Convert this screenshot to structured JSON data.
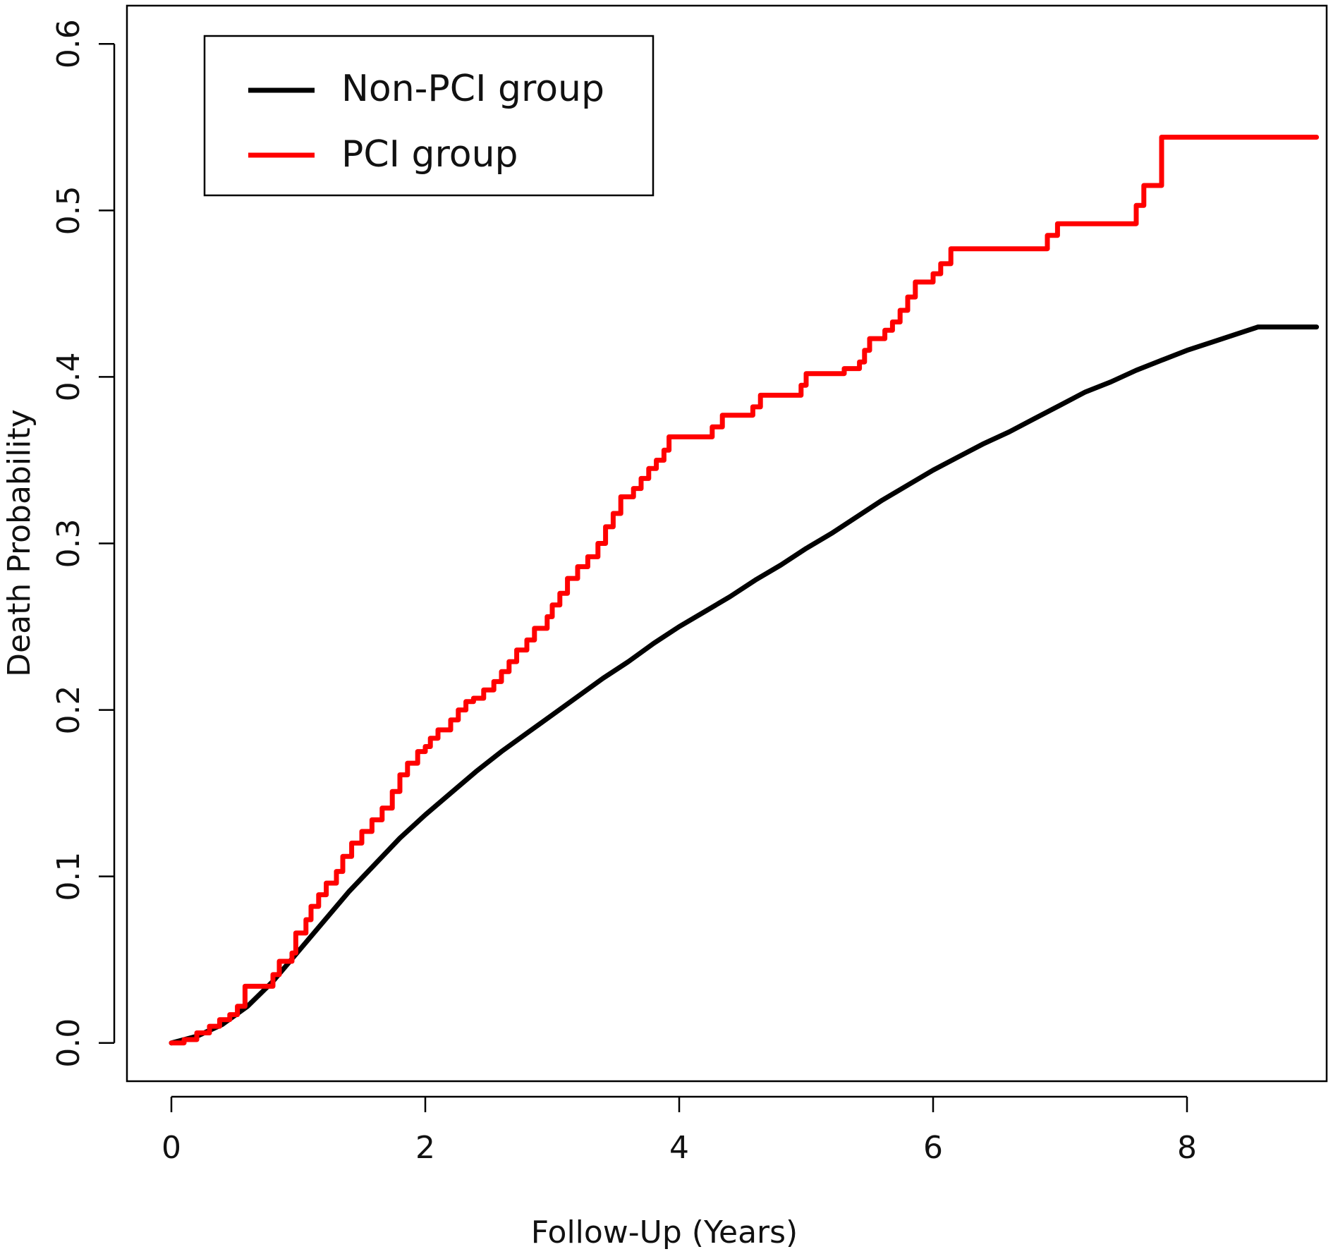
{
  "chart_data": {
    "type": "line",
    "title": "",
    "xlabel": "Follow-Up (Years)",
    "ylabel": "Death Probability",
    "xlim": [
      -0.35,
      9.1
    ],
    "ylim": [
      -0.023,
      0.623
    ],
    "x_ticks": [
      0,
      2,
      4,
      6,
      8
    ],
    "x_tick_labels": [
      "0",
      "2",
      "4",
      "6",
      "8"
    ],
    "y_ticks": [
      0.0,
      0.1,
      0.2,
      0.3,
      0.4,
      0.5,
      0.6
    ],
    "y_tick_labels": [
      "0.0",
      "0.1",
      "0.2",
      "0.3",
      "0.4",
      "0.5",
      "0.6"
    ],
    "grid": false,
    "legend_position": "top-left",
    "series": [
      {
        "name": "Non-PCI group",
        "color": "#000000",
        "step": false,
        "points": [
          [
            0,
            0
          ],
          [
            0.2,
            0.004
          ],
          [
            0.4,
            0.011
          ],
          [
            0.6,
            0.022
          ],
          [
            0.8,
            0.037
          ],
          [
            1.0,
            0.055
          ],
          [
            1.2,
            0.073
          ],
          [
            1.4,
            0.091
          ],
          [
            1.6,
            0.107
          ],
          [
            1.8,
            0.123
          ],
          [
            2.0,
            0.137
          ],
          [
            2.2,
            0.15
          ],
          [
            2.4,
            0.163
          ],
          [
            2.6,
            0.175
          ],
          [
            2.8,
            0.186
          ],
          [
            3.0,
            0.197
          ],
          [
            3.2,
            0.208
          ],
          [
            3.4,
            0.219
          ],
          [
            3.6,
            0.229
          ],
          [
            3.8,
            0.24
          ],
          [
            4.0,
            0.25
          ],
          [
            4.2,
            0.259
          ],
          [
            4.4,
            0.268
          ],
          [
            4.6,
            0.278
          ],
          [
            4.8,
            0.287
          ],
          [
            5.0,
            0.297
          ],
          [
            5.2,
            0.306
          ],
          [
            5.4,
            0.316
          ],
          [
            5.6,
            0.326
          ],
          [
            5.8,
            0.335
          ],
          [
            6.0,
            0.344
          ],
          [
            6.2,
            0.352
          ],
          [
            6.4,
            0.36
          ],
          [
            6.6,
            0.367
          ],
          [
            6.8,
            0.375
          ],
          [
            7.0,
            0.383
          ],
          [
            7.2,
            0.391
          ],
          [
            7.4,
            0.397
          ],
          [
            7.6,
            0.404
          ],
          [
            7.8,
            0.41
          ],
          [
            8.0,
            0.416
          ],
          [
            8.2,
            0.421
          ],
          [
            8.4,
            0.426
          ],
          [
            8.56,
            0.43
          ],
          [
            9.02,
            0.43
          ]
        ]
      },
      {
        "name": "PCI group",
        "color": "#ff0000",
        "step": true,
        "points": [
          [
            0,
            0
          ],
          [
            0.1,
            0.002
          ],
          [
            0.2,
            0.006
          ],
          [
            0.3,
            0.01
          ],
          [
            0.38,
            0.014
          ],
          [
            0.46,
            0.017
          ],
          [
            0.52,
            0.022
          ],
          [
            0.58,
            0.034
          ],
          [
            0.8,
            0.041
          ],
          [
            0.85,
            0.049
          ],
          [
            0.95,
            0.054
          ],
          [
            0.98,
            0.066
          ],
          [
            1.06,
            0.074
          ],
          [
            1.1,
            0.082
          ],
          [
            1.16,
            0.089
          ],
          [
            1.22,
            0.096
          ],
          [
            1.3,
            0.103
          ],
          [
            1.35,
            0.112
          ],
          [
            1.42,
            0.12
          ],
          [
            1.5,
            0.127
          ],
          [
            1.58,
            0.134
          ],
          [
            1.66,
            0.141
          ],
          [
            1.74,
            0.151
          ],
          [
            1.8,
            0.161
          ],
          [
            1.86,
            0.168
          ],
          [
            1.94,
            0.175
          ],
          [
            2.0,
            0.178
          ],
          [
            2.04,
            0.183
          ],
          [
            2.1,
            0.188
          ],
          [
            2.2,
            0.194
          ],
          [
            2.26,
            0.2
          ],
          [
            2.32,
            0.205
          ],
          [
            2.38,
            0.207
          ],
          [
            2.46,
            0.212
          ],
          [
            2.54,
            0.217
          ],
          [
            2.6,
            0.223
          ],
          [
            2.66,
            0.229
          ],
          [
            2.72,
            0.236
          ],
          [
            2.8,
            0.242
          ],
          [
            2.86,
            0.249
          ],
          [
            2.96,
            0.256
          ],
          [
            3.0,
            0.263
          ],
          [
            3.06,
            0.27
          ],
          [
            3.12,
            0.279
          ],
          [
            3.2,
            0.286
          ],
          [
            3.28,
            0.292
          ],
          [
            3.36,
            0.3
          ],
          [
            3.42,
            0.31
          ],
          [
            3.48,
            0.318
          ],
          [
            3.54,
            0.328
          ],
          [
            3.64,
            0.333
          ],
          [
            3.7,
            0.339
          ],
          [
            3.76,
            0.345
          ],
          [
            3.82,
            0.35
          ],
          [
            3.88,
            0.356
          ],
          [
            3.92,
            0.364
          ],
          [
            4.26,
            0.37
          ],
          [
            4.34,
            0.377
          ],
          [
            4.58,
            0.382
          ],
          [
            4.64,
            0.389
          ],
          [
            4.96,
            0.395
          ],
          [
            5.0,
            0.402
          ],
          [
            5.3,
            0.405
          ],
          [
            5.42,
            0.409
          ],
          [
            5.46,
            0.416
          ],
          [
            5.5,
            0.423
          ],
          [
            5.62,
            0.428
          ],
          [
            5.68,
            0.433
          ],
          [
            5.74,
            0.44
          ],
          [
            5.8,
            0.448
          ],
          [
            5.86,
            0.457
          ],
          [
            6.0,
            0.462
          ],
          [
            6.06,
            0.468
          ],
          [
            6.14,
            0.477
          ],
          [
            6.9,
            0.485
          ],
          [
            6.98,
            0.492
          ],
          [
            7.6,
            0.503
          ],
          [
            7.66,
            0.515
          ],
          [
            7.8,
            0.544
          ],
          [
            9.02,
            0.544
          ]
        ]
      }
    ]
  }
}
